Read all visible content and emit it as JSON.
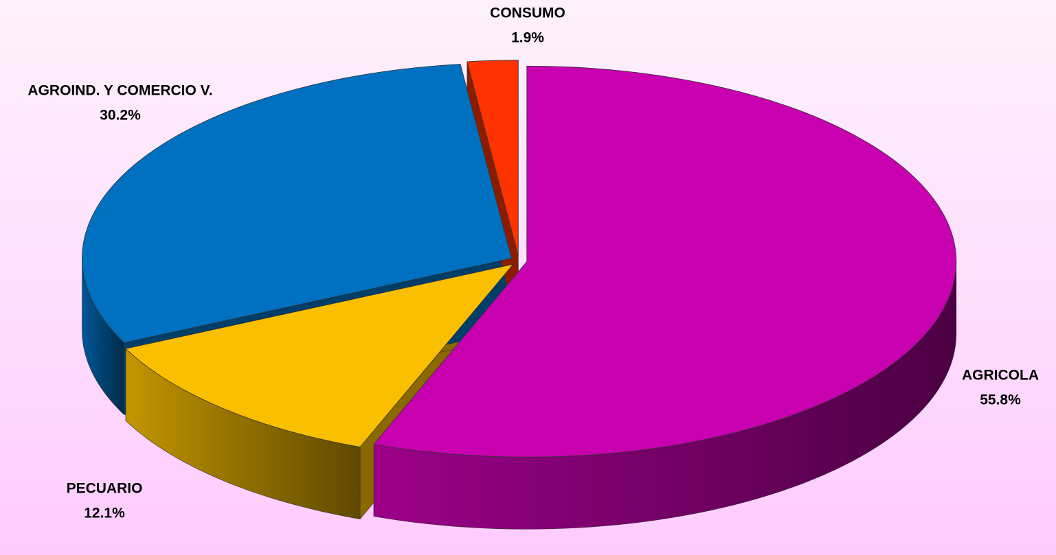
{
  "chart_data": {
    "type": "pie",
    "categories": [
      "AGRICOLA",
      "PECUARIO",
      "AGROIND. Y COMERCIO V.",
      "CONSUMO"
    ],
    "values": [
      55.8,
      12.1,
      30.2,
      1.9
    ],
    "value_labels": [
      "55.8%",
      "12.1%",
      "30.2%",
      "1.9%"
    ],
    "colors": [
      "#c800b0",
      "#f9bf00",
      "#0070c0",
      "#ff3300"
    ]
  }
}
